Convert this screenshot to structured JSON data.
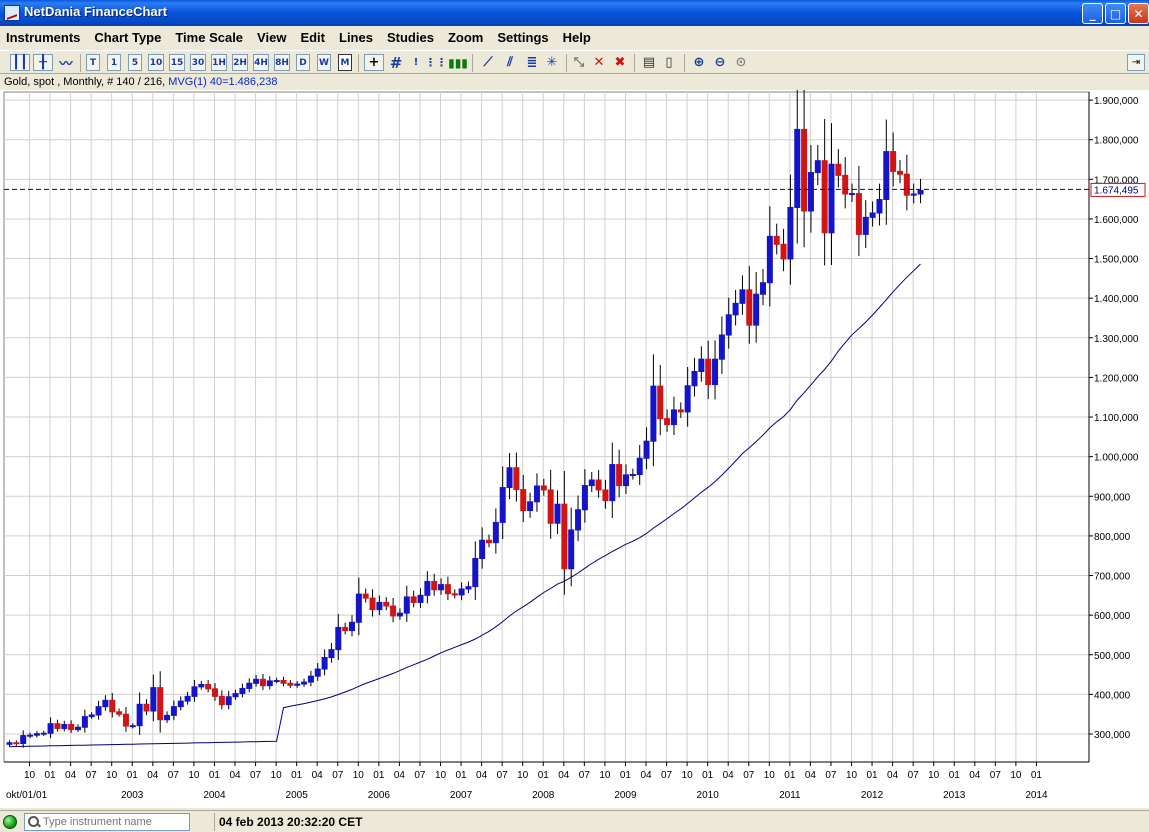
{
  "window": {
    "title": "NetDania FinanceChart",
    "minimize_glyph": "_",
    "maximize_glyph": "□",
    "close_glyph": "✕"
  },
  "menu": [
    "Instruments",
    "Chart Type",
    "Time Scale",
    "View",
    "Edit",
    "Lines",
    "Studies",
    "Zoom",
    "Settings",
    "Help"
  ],
  "toolbar": {
    "timescale_buttons": [
      "T",
      "1",
      "5",
      "10",
      "15",
      "30",
      "1H",
      "2H",
      "4H",
      "8H",
      "D",
      "W",
      "M"
    ],
    "active_timescale": "M",
    "icons": [
      "candlestick-icon",
      "bar-chart-icon",
      "line-chart-icon",
      "crosshair-icon",
      "grid-icon",
      "info-icon",
      "dotted-line-icon",
      "volume-icon",
      "trendline-icon",
      "parallel-lines-icon",
      "fibonacci-icon",
      "gann-icon",
      "select-tool-icon",
      "delete-icon",
      "delete-all-icon",
      "print-icon",
      "print-preview-icon",
      "zoom-in-icon",
      "zoom-out-icon",
      "zoom-reset-icon",
      "dock-icon"
    ]
  },
  "info": {
    "symbol_line": "Gold, spot , Monthly, # 140 / 216, ",
    "mvg_label": "MVG(1) 40=1.486,238"
  },
  "current_price_label": "1.674,495",
  "status": {
    "search_placeholder": "Type instrument name",
    "timestamp": "04 feb 2013 20:32:20 CET"
  },
  "colors": {
    "up_candle": "#1414c8",
    "down_candle": "#d21414",
    "ma_line": "#000080",
    "price_line": "#000080",
    "grid": "#d0d0d0"
  },
  "chart_data": {
    "type": "candlestick",
    "instrument": "Gold, spot",
    "interval": "Monthly",
    "first_date": "2001-10",
    "y_axis_labels": [
      "300,000",
      "400,000",
      "500,000",
      "600,000",
      "700,000",
      "800,000",
      "900,000",
      "1.000,000",
      "1.100,000",
      "1.200,000",
      "1.300,000",
      "1.400,000",
      "1.500,000",
      "1.600,000",
      "1.700,000",
      "1.800,000",
      "1.900,000"
    ],
    "ylim": [
      240,
      1940
    ],
    "x_month_labels": [
      "10",
      "01",
      "04",
      "07",
      "10",
      "01",
      "04",
      "07",
      "10",
      "01",
      "04",
      "07",
      "10",
      "01",
      "04",
      "07",
      "10",
      "01",
      "04",
      "07",
      "10",
      "01",
      "04",
      "07",
      "10",
      "01",
      "04",
      "07",
      "10",
      "01",
      "04",
      "07",
      "10",
      "01",
      "04",
      "07",
      "10",
      "01",
      "04",
      "07",
      "10",
      "01",
      "04",
      "07",
      "10",
      "01",
      "04",
      "07",
      "10",
      "01"
    ],
    "x_first_label": "okt/01/01",
    "x_year_labels": [
      "2003",
      "2004",
      "2005",
      "2006",
      "2007",
      "2008",
      "2009",
      "2010",
      "2011",
      "2012",
      "2013",
      "2014"
    ],
    "closes": [
      278,
      276,
      296,
      297,
      301,
      302,
      326,
      314,
      324,
      311,
      317,
      344,
      348,
      369,
      385,
      356,
      350,
      320,
      321,
      375,
      358,
      417,
      336,
      347,
      369,
      383,
      395,
      419,
      425,
      414,
      395,
      374,
      394,
      402,
      415,
      428,
      438,
      422,
      434,
      435,
      428,
      423,
      426,
      431,
      446,
      464,
      493,
      513,
      569,
      561,
      582,
      653,
      643,
      614,
      632,
      623,
      598,
      605,
      646,
      632,
      650,
      685,
      664,
      677,
      654,
      651,
      666,
      672,
      743,
      789,
      783,
      834,
      922,
      972,
      917,
      864,
      886,
      926,
      916,
      832,
      880,
      717,
      815,
      866,
      927,
      941,
      916,
      889,
      980,
      927,
      954,
      955,
      996,
      1039,
      1178,
      1096,
      1081,
      1118,
      1113,
      1179,
      1215,
      1246,
      1182,
      1246,
      1307,
      1358,
      1387,
      1421,
      1332,
      1410,
      1439,
      1556,
      1536,
      1499,
      1629,
      1826,
      1620,
      1717,
      1747,
      1565,
      1738,
      1710,
      1663,
      1664,
      1561,
      1604,
      1615,
      1649,
      1770,
      1720,
      1713,
      1660,
      1663,
      1672
    ],
    "ma40_start": 268,
    "ma40_end": 1486.238,
    "current_price": 1674.495
  }
}
